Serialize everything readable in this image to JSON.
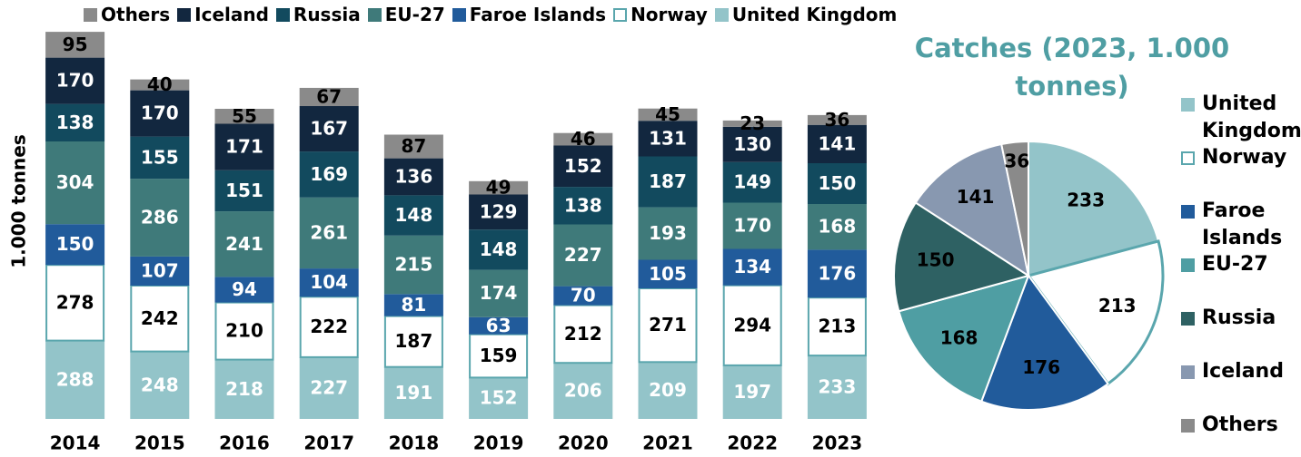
{
  "chart_data": [
    {
      "type": "bar",
      "stacked": true,
      "ylabel": "1.000 tonnes",
      "categories": [
        "2014",
        "2015",
        "2016",
        "2017",
        "2018",
        "2019",
        "2020",
        "2021",
        "2022",
        "2023"
      ],
      "ylim": [
        0,
        1430
      ],
      "series": [
        {
          "name": "United Kingdom",
          "color": "#93c4c9",
          "label_color": "#ffffff",
          "values": [
            288,
            248,
            218,
            227,
            191,
            152,
            206,
            209,
            197,
            233
          ]
        },
        {
          "name": "Norway",
          "color": "#ffffff",
          "edgecolor": "#5aa6ad",
          "label_color": "#000000",
          "values": [
            278,
            242,
            210,
            222,
            187,
            159,
            212,
            271,
            294,
            213
          ]
        },
        {
          "name": "Faroe Islands",
          "color": "#215b9b",
          "label_color": "#ffffff",
          "values": [
            150,
            107,
            94,
            104,
            81,
            63,
            70,
            105,
            134,
            176
          ]
        },
        {
          "name": "EU-27",
          "color": "#3f7a7a",
          "label_color": "#ffffff",
          "values": [
            304,
            286,
            241,
            261,
            215,
            174,
            227,
            193,
            170,
            168
          ]
        },
        {
          "name": "Russia",
          "color": "#124a5e",
          "label_color": "#ffffff",
          "values": [
            138,
            155,
            151,
            169,
            148,
            148,
            138,
            187,
            149,
            150
          ]
        },
        {
          "name": "Iceland",
          "color": "#12273f",
          "label_color": "#ffffff",
          "values": [
            170,
            170,
            171,
            167,
            136,
            129,
            152,
            131,
            130,
            141
          ]
        },
        {
          "name": "Others",
          "color": "#8a8a8a",
          "label_color": "#000000",
          "values": [
            95,
            40,
            55,
            67,
            87,
            49,
            46,
            45,
            23,
            36
          ]
        }
      ]
    },
    {
      "type": "pie",
      "title": "Catches (2023, 1.000 tonnes)",
      "categories": [
        "United Kingdom",
        "Norway",
        "Faroe Islands",
        "EU-27",
        "Russia",
        "Iceland",
        "Others"
      ],
      "values": [
        233,
        213,
        176,
        168,
        150,
        141,
        36
      ],
      "colors": [
        "#93c4c9",
        "#ffffff",
        "#215b9b",
        "#4f9ea3",
        "#2e6163",
        "#8898b0",
        "#8a8a8a"
      ],
      "edgecolor": "#5aa6ad"
    }
  ]
}
